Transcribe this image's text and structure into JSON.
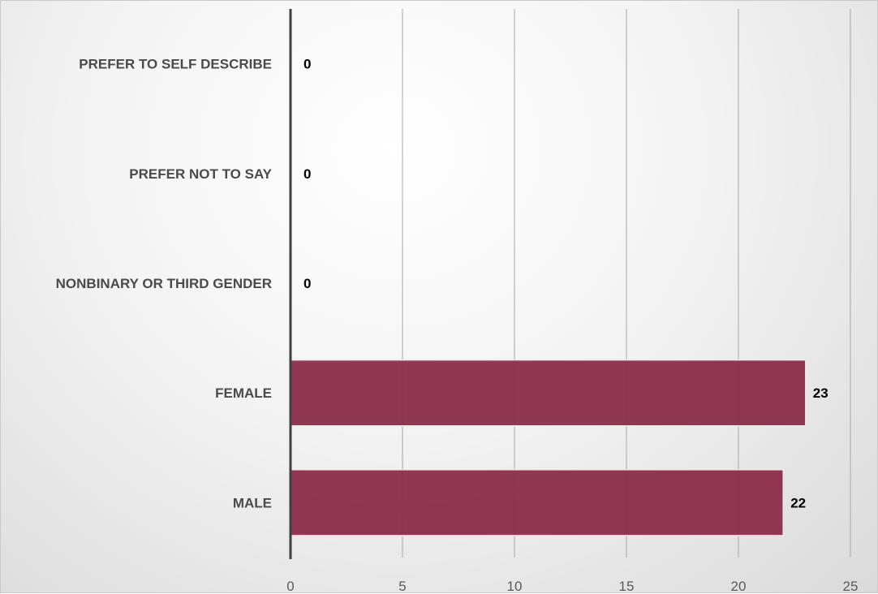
{
  "chart_data": {
    "type": "bar",
    "orientation": "horizontal",
    "categories": [
      "PREFER TO SELF DESCRIBE",
      "PREFER NOT TO SAY",
      "NONBINARY OR THIRD GENDER",
      "FEMALE",
      "MALE"
    ],
    "values": [
      0,
      0,
      0,
      23,
      22
    ],
    "data_labels": [
      "0",
      "0",
      "0",
      "23",
      "22"
    ],
    "xlim": [
      0,
      25
    ],
    "xticks": [
      0,
      5,
      10,
      15,
      20,
      25
    ],
    "xtick_labels": [
      "0",
      "5",
      "10",
      "15",
      "20",
      "25"
    ],
    "title": "",
    "xlabel": "",
    "ylabel": "",
    "grid": "vertical",
    "legend": "none",
    "bar_color": "#8b2c4a"
  }
}
